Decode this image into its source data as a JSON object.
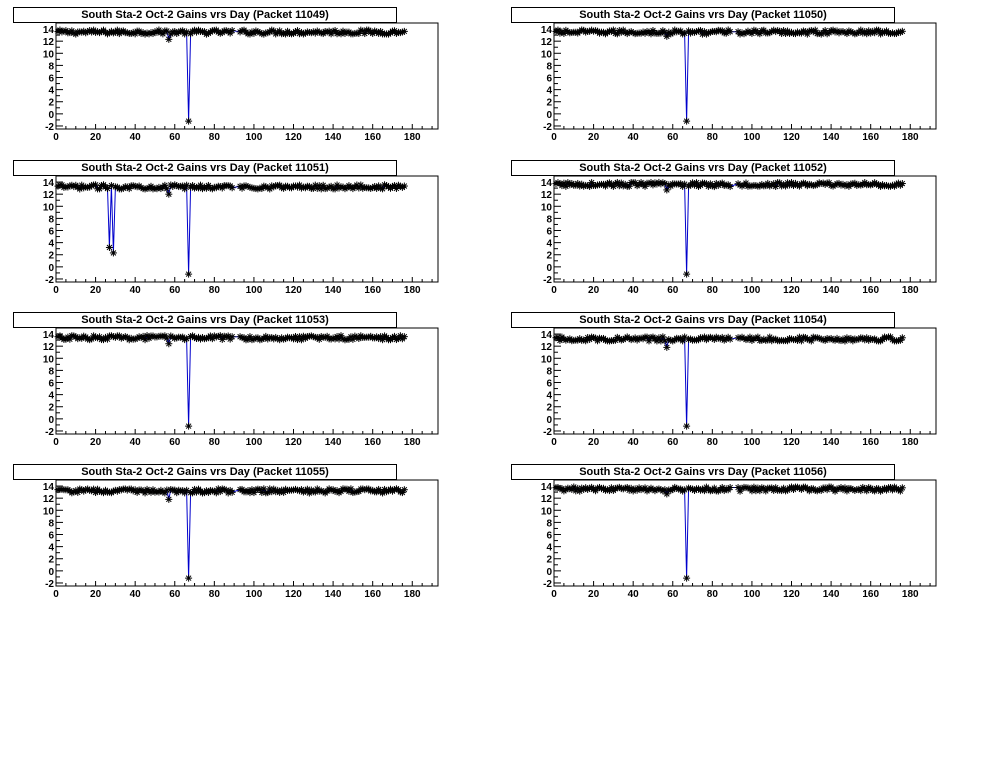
{
  "chart_data": [
    {
      "type": "scatter",
      "title": "South Sta-2 Oct-2 Gains vrs Day (Packet 11049)",
      "xlim": [
        0,
        193
      ],
      "ylim": [
        -2.5,
        15
      ],
      "xticks": [
        0,
        20,
        40,
        60,
        80,
        100,
        120,
        140,
        160,
        180
      ],
      "yticks": [
        -2,
        0,
        2,
        4,
        6,
        8,
        10,
        12,
        14
      ],
      "baseline": 13.5,
      "gaps": [
        [
          89,
          93
        ]
      ],
      "dips": [
        {
          "x": 57,
          "y": 12.3
        },
        {
          "x": 67,
          "y": -1.2
        }
      ],
      "x_range": [
        1,
        176
      ],
      "marker": "asterisk",
      "line_color": "#0000cc",
      "grid": false
    },
    {
      "type": "scatter",
      "title": "South Sta-2 Oct-2 Gains vrs Day (Packet 11050)",
      "xlim": [
        0,
        193
      ],
      "ylim": [
        -2.5,
        15
      ],
      "xticks": [
        0,
        20,
        40,
        60,
        80,
        100,
        120,
        140,
        160,
        180
      ],
      "yticks": [
        -2,
        0,
        2,
        4,
        6,
        8,
        10,
        12,
        14
      ],
      "baseline": 13.5,
      "gaps": [
        [
          89,
          93
        ]
      ],
      "dips": [
        {
          "x": 57,
          "y": 12.8
        },
        {
          "x": 67,
          "y": -1.2
        }
      ],
      "x_range": [
        1,
        176
      ],
      "marker": "asterisk",
      "line_color": "#0000cc",
      "grid": false
    },
    {
      "type": "scatter",
      "title": "South Sta-2 Oct-2 Gains vrs Day (Packet 11051)",
      "xlim": [
        0,
        193
      ],
      "ylim": [
        -2.5,
        15
      ],
      "xticks": [
        0,
        20,
        40,
        60,
        80,
        100,
        120,
        140,
        160,
        180
      ],
      "yticks": [
        -2,
        0,
        2,
        4,
        6,
        8,
        10,
        12,
        14
      ],
      "baseline": 13.2,
      "gaps": [
        [
          89,
          93
        ]
      ],
      "dips": [
        {
          "x": 27,
          "y": 3.2
        },
        {
          "x": 29,
          "y": 2.3
        },
        {
          "x": 57,
          "y": 12.0
        },
        {
          "x": 67,
          "y": -1.2
        }
      ],
      "x_range": [
        1,
        176
      ],
      "marker": "asterisk",
      "line_color": "#0000cc",
      "grid": false
    },
    {
      "type": "scatter",
      "title": "South Sta-2 Oct-2 Gains vrs Day (Packet 11052)",
      "xlim": [
        0,
        193
      ],
      "ylim": [
        -2.5,
        15
      ],
      "xticks": [
        0,
        20,
        40,
        60,
        80,
        100,
        120,
        140,
        160,
        180
      ],
      "yticks": [
        -2,
        0,
        2,
        4,
        6,
        8,
        10,
        12,
        14
      ],
      "baseline": 13.6,
      "gaps": [
        [
          89,
          93
        ]
      ],
      "dips": [
        {
          "x": 57,
          "y": 12.7
        },
        {
          "x": 67,
          "y": -1.2
        }
      ],
      "x_range": [
        1,
        176
      ],
      "marker": "asterisk",
      "line_color": "#0000cc",
      "grid": false
    },
    {
      "type": "scatter",
      "title": "South Sta-2 Oct-2 Gains vrs Day (Packet 11053)",
      "xlim": [
        0,
        193
      ],
      "ylim": [
        -2.5,
        15
      ],
      "xticks": [
        0,
        20,
        40,
        60,
        80,
        100,
        120,
        140,
        160,
        180
      ],
      "yticks": [
        -2,
        0,
        2,
        4,
        6,
        8,
        10,
        12,
        14
      ],
      "baseline": 13.4,
      "gaps": [
        [
          89,
          93
        ]
      ],
      "dips": [
        {
          "x": 57,
          "y": 12.4
        },
        {
          "x": 67,
          "y": -1.2
        }
      ],
      "x_range": [
        1,
        176
      ],
      "marker": "asterisk",
      "line_color": "#0000cc",
      "grid": false
    },
    {
      "type": "scatter",
      "title": "South Sta-2 Oct-2 Gains vrs Day (Packet 11054)",
      "xlim": [
        0,
        193
      ],
      "ylim": [
        -2.5,
        15
      ],
      "xticks": [
        0,
        20,
        40,
        60,
        80,
        100,
        120,
        140,
        160,
        180
      ],
      "yticks": [
        -2,
        0,
        2,
        4,
        6,
        8,
        10,
        12,
        14
      ],
      "baseline": 13.2,
      "gaps": [
        [
          89,
          93
        ]
      ],
      "dips": [
        {
          "x": 57,
          "y": 11.8
        },
        {
          "x": 67,
          "y": -1.2
        }
      ],
      "x_range": [
        1,
        176
      ],
      "marker": "asterisk",
      "line_color": "#0000cc",
      "grid": false
    },
    {
      "type": "scatter",
      "title": "South Sta-2 Oct-2 Gains vrs Day (Packet 11055)",
      "xlim": [
        0,
        193
      ],
      "ylim": [
        -2.5,
        15
      ],
      "xticks": [
        0,
        20,
        40,
        60,
        80,
        100,
        120,
        140,
        160,
        180
      ],
      "yticks": [
        -2,
        0,
        2,
        4,
        6,
        8,
        10,
        12,
        14
      ],
      "baseline": 13.2,
      "gaps": [
        [
          89,
          93
        ]
      ],
      "dips": [
        {
          "x": 57,
          "y": 11.8
        },
        {
          "x": 67,
          "y": -1.2
        }
      ],
      "x_range": [
        1,
        176
      ],
      "marker": "asterisk",
      "line_color": "#0000cc",
      "grid": false
    },
    {
      "type": "scatter",
      "title": "South Sta-2 Oct-2 Gains vrs Day (Packet 11056)",
      "xlim": [
        0,
        193
      ],
      "ylim": [
        -2.5,
        15
      ],
      "xticks": [
        0,
        20,
        40,
        60,
        80,
        100,
        120,
        140,
        160,
        180
      ],
      "yticks": [
        -2,
        0,
        2,
        4,
        6,
        8,
        10,
        12,
        14
      ],
      "baseline": 13.5,
      "gaps": [
        [
          89,
          93
        ]
      ],
      "dips": [
        {
          "x": 57,
          "y": 12.7
        },
        {
          "x": 67,
          "y": -1.2
        }
      ],
      "x_range": [
        1,
        176
      ],
      "marker": "asterisk",
      "line_color": "#0000cc",
      "grid": false
    }
  ]
}
